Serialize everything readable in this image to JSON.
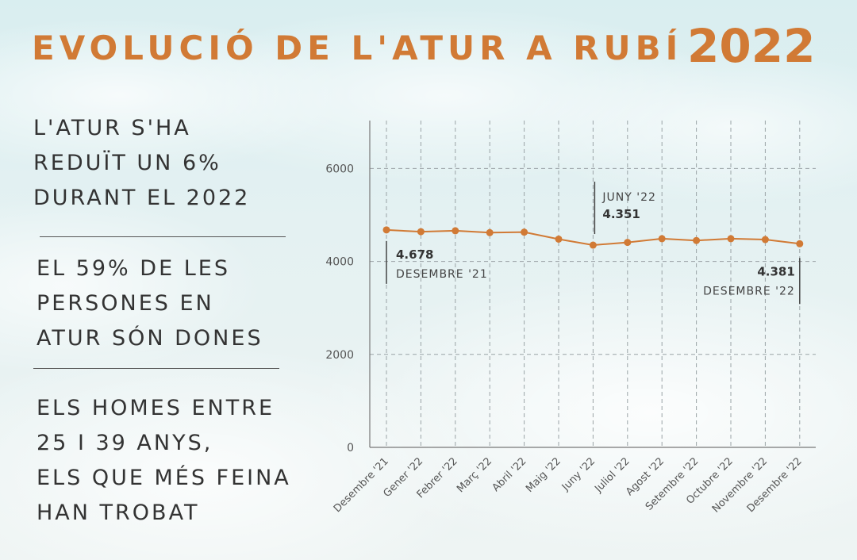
{
  "title": "EVOLUCIÓ DE L'ATUR A RUBÍ",
  "year": "2022",
  "stats": [
    {
      "lines": [
        "L'ATUR S'HA",
        "REDUÏT UN 6%",
        "DURANT EL 2022"
      ]
    },
    {
      "lines": [
        "EL 59% DE LES",
        "PERSONES EN",
        "ATUR SÓN DONES"
      ]
    },
    {
      "lines": [
        "ELS HOMES ENTRE",
        "25 I 39 ANYS,",
        "ELS QUE MÉS FEINA",
        "HAN TROBAT"
      ]
    }
  ],
  "colors": {
    "accent": "#d17a35",
    "text": "#333333",
    "grid": "#9aa3a6"
  },
  "chart_data": {
    "type": "line",
    "categories": [
      "Desembre '21",
      "Gener '22",
      "Febrer '22",
      "Març '22",
      "Abril '22",
      "Maig '22",
      "Juny '22",
      "Juliol '22",
      "Agost '22",
      "Setembre '22",
      "Octubre '22",
      "Novembre '22",
      "Desembre '22"
    ],
    "values": [
      4678,
      4640,
      4660,
      4620,
      4630,
      4480,
      4351,
      4410,
      4490,
      4450,
      4490,
      4470,
      4381
    ],
    "ylim": [
      0,
      7000
    ],
    "yticks": [
      "0",
      "2000",
      "4000",
      "6000"
    ],
    "ytick_values": [
      0,
      2000,
      4000,
      6000
    ],
    "grid": true,
    "annotations": [
      {
        "label": "DESEMBRE '21",
        "value": "4.678",
        "index": 0
      },
      {
        "label": "JUNY '22",
        "value": "4.351",
        "index": 6
      },
      {
        "label": "DESEMBRE '22",
        "value": "4.381",
        "index": 12
      }
    ]
  }
}
